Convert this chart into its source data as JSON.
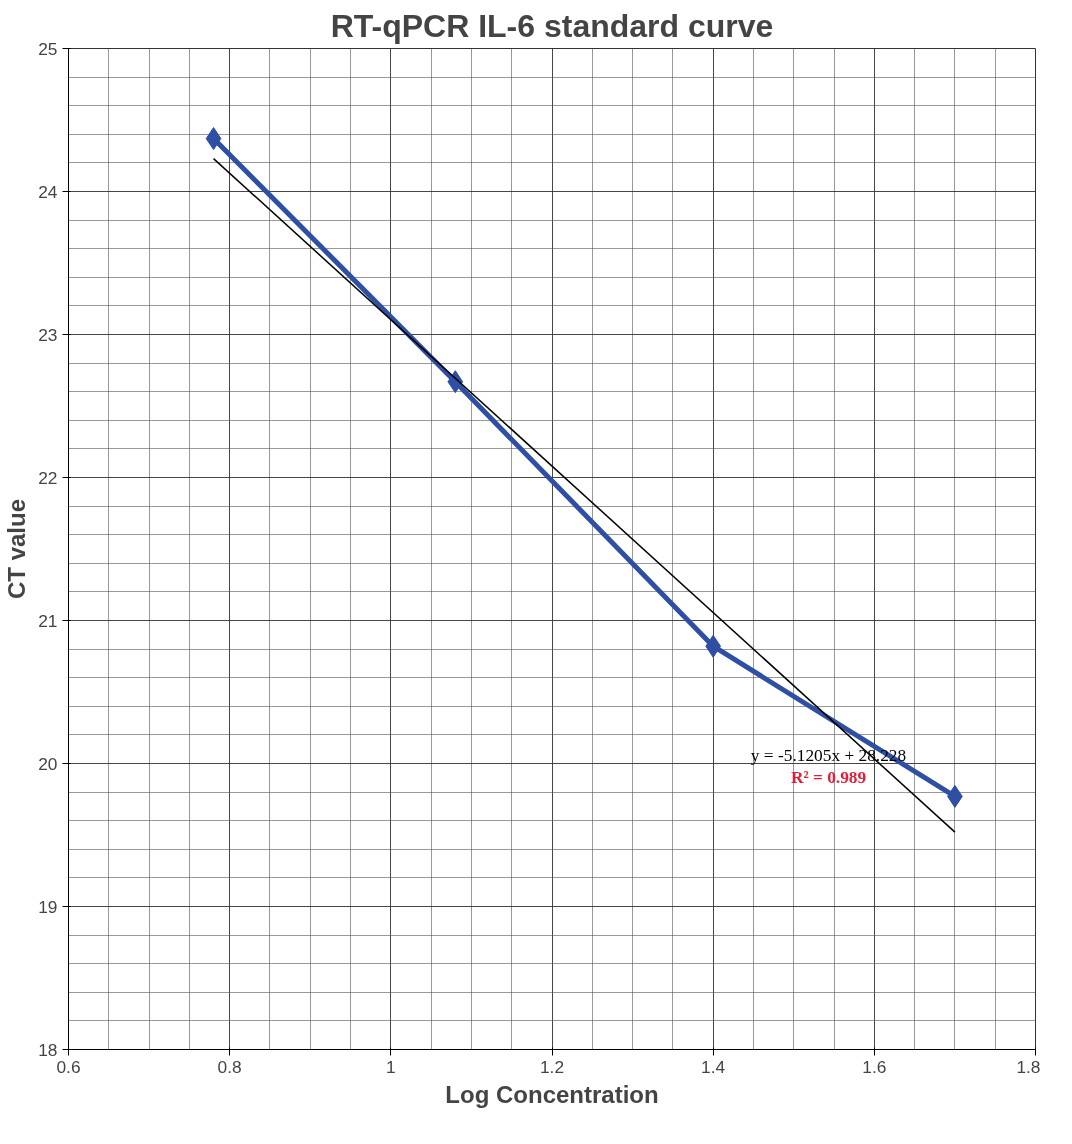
{
  "chart_data": {
    "type": "line",
    "title": "RT-qPCR IL-6 standard curve",
    "xlabel": "Log Concentration",
    "ylabel": "CT value",
    "xlim": [
      0.6,
      1.8
    ],
    "xticks": [
      0.6,
      0.8,
      1,
      1.2,
      1.4,
      1.6,
      1.8
    ],
    "ylim": [
      18,
      25
    ],
    "yticks": [
      18,
      19,
      20,
      21,
      22,
      23,
      24,
      25
    ],
    "grid": true,
    "marker": "diamond",
    "series": [
      {
        "color": "#2e4fa3",
        "x": [
          0.78,
          1.08,
          1.4,
          1.7
        ],
        "values": [
          24.37,
          22.67,
          20.82,
          19.77
        ]
      },
      {
        "color": "#000000",
        "x": [
          0.78,
          1.7
        ],
        "values": [
          24.23,
          19.52
        ],
        "marker": "none"
      }
    ],
    "annotations": [
      "y = -5.1205x + 28.228",
      "R² = 0.989"
    ]
  }
}
